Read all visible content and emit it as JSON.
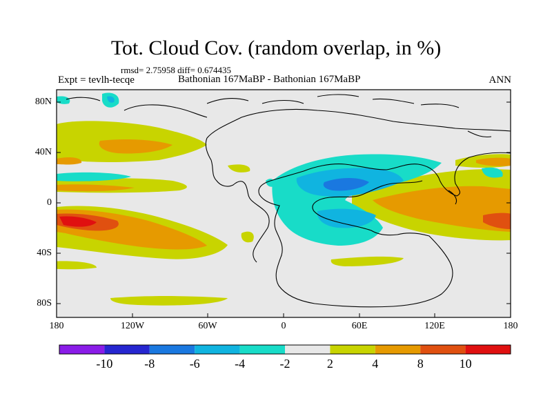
{
  "title": "Tot. Cloud Cov. (random overlap, in %)",
  "stats": "rmsd= 2.75958 diff= 0.674435",
  "expt_label": "Expt = tevlh-tecqe",
  "center_label": "Bathonian 167MaBP - Bathonian 167MaBP",
  "season_label": "ANN",
  "lat_ticks": [
    "80N",
    "40N",
    "0",
    "40S",
    "80S"
  ],
  "lon_ticks": [
    "180",
    "120W",
    "60W",
    "0",
    "60E",
    "120E",
    "180"
  ],
  "colorbar": {
    "colors": [
      "#8a1ce8",
      "#2626d0",
      "#1a78e0",
      "#10b4e0",
      "#18dcc8",
      "#e8e8e8",
      "#c8d400",
      "#e69a00",
      "#e05010",
      "#e01010"
    ],
    "labels": [
      "-10",
      "-8",
      "-6",
      "-4",
      "-2",
      "2",
      "4",
      "8",
      "10"
    ]
  },
  "colors": {
    "land_line": "#000000",
    "neutral": "#e8e8e8",
    "yellow": "#c8d400",
    "orange": "#e69a00",
    "dark_orange": "#e05010",
    "red": "#e01010",
    "cyan": "#18dcc8",
    "light_blue": "#10b4e0",
    "blue": "#1a78e0"
  }
}
